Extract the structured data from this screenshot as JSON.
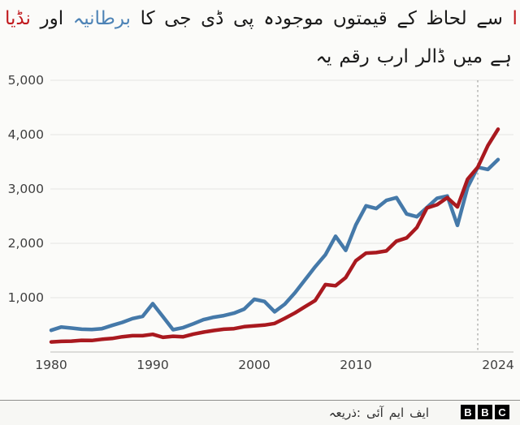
{
  "colors": {
    "background": "#fbfbf9",
    "footer_background": "#f7f7f4",
    "text": "#1a1a1a",
    "axis_text": "#3f3f3f",
    "grid": "#e5e5e2",
    "baseline": "#c9c9c6",
    "dashed_marker": "#a3a3a0",
    "india_red": "#a9191f",
    "uk_blue": "#4579a9",
    "title_red": "#c0181c",
    "title_blue": "#4d83b6"
  },
  "title": {
    "words": [
      {
        "text": "نڈیا",
        "color": "#c0181c"
      },
      {
        "text": "اور"
      },
      {
        "text": "برطانیہ",
        "color": "#4d83b6"
      },
      {
        "text": "کا"
      },
      {
        "text": "جی"
      },
      {
        "text": "ڈی"
      },
      {
        "text": "پی"
      },
      {
        "text": "موجودہ"
      },
      {
        "text": "قیمتوں"
      },
      {
        "text": "کے"
      },
      {
        "text": "لحاظ"
      },
      {
        "text": "سے"
      },
      {
        "text": "ا",
        "color": "#c0181c"
      }
    ]
  },
  "subtitle": {
    "words": [
      {
        "text": "یہ"
      },
      {
        "text": "رقم"
      },
      {
        "text": "ارب"
      },
      {
        "text": "ڈالر"
      },
      {
        "text": "میں"
      },
      {
        "text": "ہے"
      }
    ]
  },
  "footer": {
    "source_words": [
      {
        "text": "ذریعہ:"
      },
      {
        "text": "آئی"
      },
      {
        "text": "ایم"
      },
      {
        "text": "ایف"
      }
    ],
    "logo_letters": [
      "B",
      "B",
      "C"
    ]
  },
  "chart_data": {
    "type": "line",
    "x_years": [
      1980,
      1981,
      1982,
      1983,
      1984,
      1985,
      1986,
      1987,
      1988,
      1989,
      1990,
      1991,
      1992,
      1993,
      1994,
      1995,
      1996,
      1997,
      1998,
      1999,
      2000,
      2001,
      2002,
      2003,
      2004,
      2005,
      2006,
      2007,
      2008,
      2009,
      2010,
      2011,
      2012,
      2013,
      2014,
      2015,
      2016,
      2017,
      2018,
      2019,
      2020,
      2021,
      2022,
      2023,
      2024
    ],
    "series": [
      {
        "name": "برطانیہ",
        "name_en": "UK",
        "color": "#4579a9",
        "values": [
          400,
          460,
          440,
          420,
          415,
          430,
          490,
          545,
          615,
          655,
          890,
          650,
          410,
          450,
          520,
          595,
          640,
          670,
          715,
          790,
          970,
          930,
          740,
          880,
          1090,
          1330,
          1570,
          1790,
          2130,
          1870,
          2340,
          2690,
          2640,
          2790,
          2840,
          2540,
          2490,
          2660,
          2830,
          2870,
          2330,
          3030,
          3400,
          3360,
          3540
        ]
      },
      {
        "name": "انڈیا",
        "name_en": "India",
        "color": "#a9191f",
        "values": [
          185,
          195,
          200,
          215,
          212,
          235,
          250,
          280,
          300,
          300,
          325,
          270,
          290,
          280,
          330,
          365,
          395,
          420,
          430,
          465,
          480,
          495,
          525,
          620,
          720,
          835,
          950,
          1240,
          1220,
          1370,
          1680,
          1820,
          1830,
          1860,
          2040,
          2100,
          2290,
          2650,
          2710,
          2840,
          2670,
          3180,
          3400,
          3800,
          4100
        ]
      }
    ],
    "xlim": [
      1980,
      2024
    ],
    "ylim": [
      0,
      5000
    ],
    "yticks": [
      {
        "value": 1000,
        "label": "1,000"
      },
      {
        "value": 2000,
        "label": "2,000"
      },
      {
        "value": 3000,
        "label": "3,000"
      },
      {
        "value": 4000,
        "label": "4,000"
      },
      {
        "value": 5000,
        "label": "5,000"
      }
    ],
    "xticks": [
      {
        "value": 1980,
        "label": "1980"
      },
      {
        "value": 1990,
        "label": "1990"
      },
      {
        "value": 2000,
        "label": "2000"
      },
      {
        "value": 2010,
        "label": "2010"
      },
      {
        "value": 2024,
        "label": "2024"
      }
    ],
    "dashed_line_year": 2022,
    "grid": true,
    "legend": "inline-title-colors"
  }
}
